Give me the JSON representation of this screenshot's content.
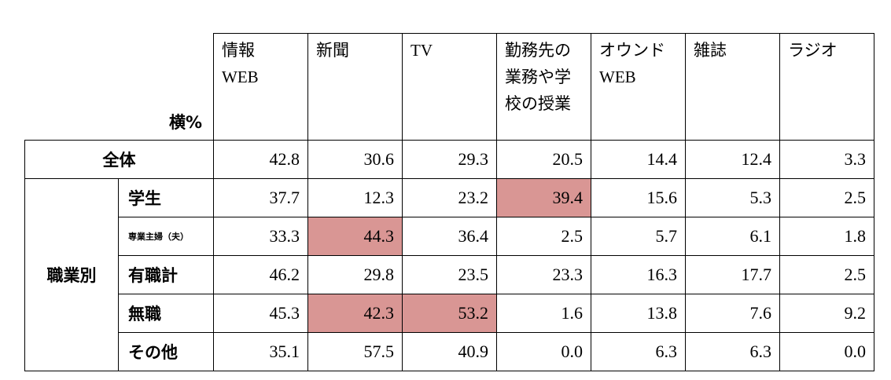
{
  "table": {
    "unit_label": "横%",
    "columns": [
      [
        "情報",
        "WEB"
      ],
      [
        "新聞"
      ],
      [
        "TV"
      ],
      [
        "勤務先の",
        "業務や学",
        "校の授業"
      ],
      [
        "オウンド",
        "WEB"
      ],
      [
        "雑誌"
      ],
      [
        "ラジオ"
      ]
    ],
    "total": {
      "label": "全体",
      "values": [
        "42.8",
        "30.6",
        "29.3",
        "20.5",
        "14.4",
        "12.4",
        "3.3"
      ]
    },
    "group": {
      "label": "職業別",
      "rows": [
        {
          "label": "学生",
          "values": [
            "37.7",
            "12.3",
            "23.2",
            "39.4",
            "15.6",
            "5.3",
            "2.5"
          ]
        },
        {
          "label": "専業主婦（夫）",
          "values": [
            "33.3",
            "44.3",
            "36.4",
            "2.5",
            "5.7",
            "6.1",
            "1.8"
          ]
        },
        {
          "label": "有職計",
          "values": [
            "46.2",
            "29.8",
            "23.5",
            "23.3",
            "16.3",
            "17.7",
            "2.5"
          ]
        },
        {
          "label": "無職",
          "values": [
            "45.3",
            "42.3",
            "53.2",
            "1.6",
            "13.8",
            "7.6",
            "9.2"
          ]
        },
        {
          "label": "その他",
          "values": [
            "35.1",
            "57.5",
            "40.9",
            "0.0",
            "6.3",
            "6.3",
            "0.0"
          ]
        }
      ]
    },
    "highlight_color": "#d99694"
  }
}
